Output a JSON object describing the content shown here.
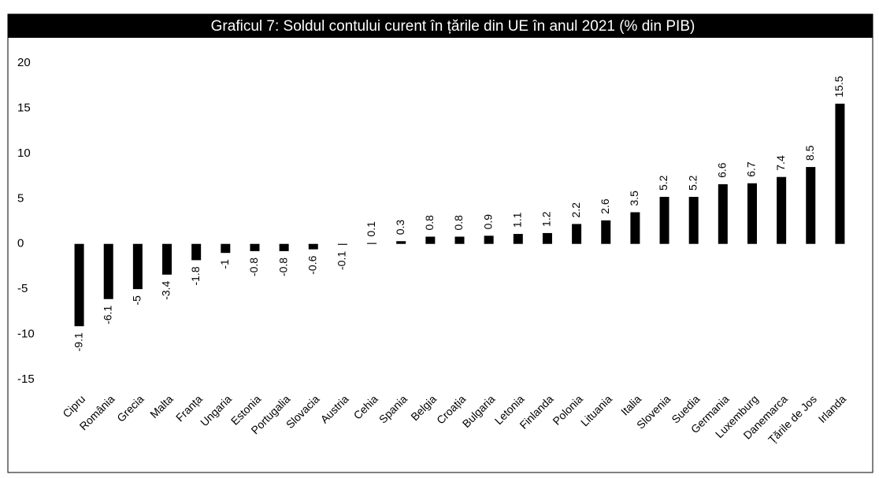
{
  "chart_data": {
    "type": "bar",
    "title": "Graficul 7: Soldul contului curent în țările din UE în anul 2021 (% din PIB)",
    "categories": [
      "Cipru",
      "România",
      "Grecia",
      "Malta",
      "Franța",
      "Ungaria",
      "Estonia",
      "Portugalia",
      "Slovacia",
      "Austria",
      "Cehia",
      "Spania",
      "Belgia",
      "Croația",
      "Bulgaria",
      "Letonia",
      "Finlanda",
      "Polonia",
      "Lituania",
      "Italia",
      "Slovenia",
      "Suedia",
      "Germania",
      "Luxemburg",
      "Danemarca",
      "Țările de Jos",
      "Irlanda"
    ],
    "values": [
      -9.1,
      -6.1,
      -5,
      -3.4,
      -1.8,
      -1,
      -0.8,
      -0.8,
      -0.6,
      -0.1,
      0.1,
      0.3,
      0.8,
      0.8,
      0.9,
      1.1,
      1.2,
      2.2,
      2.6,
      3.5,
      5.2,
      5.2,
      6.6,
      6.7,
      7.4,
      8.5,
      15.5
    ],
    "color": "#000000",
    "ylim": [
      -15,
      20
    ],
    "yticks": [
      20,
      15,
      10,
      5,
      0,
      -5,
      -10,
      -15
    ],
    "grid": false
  }
}
